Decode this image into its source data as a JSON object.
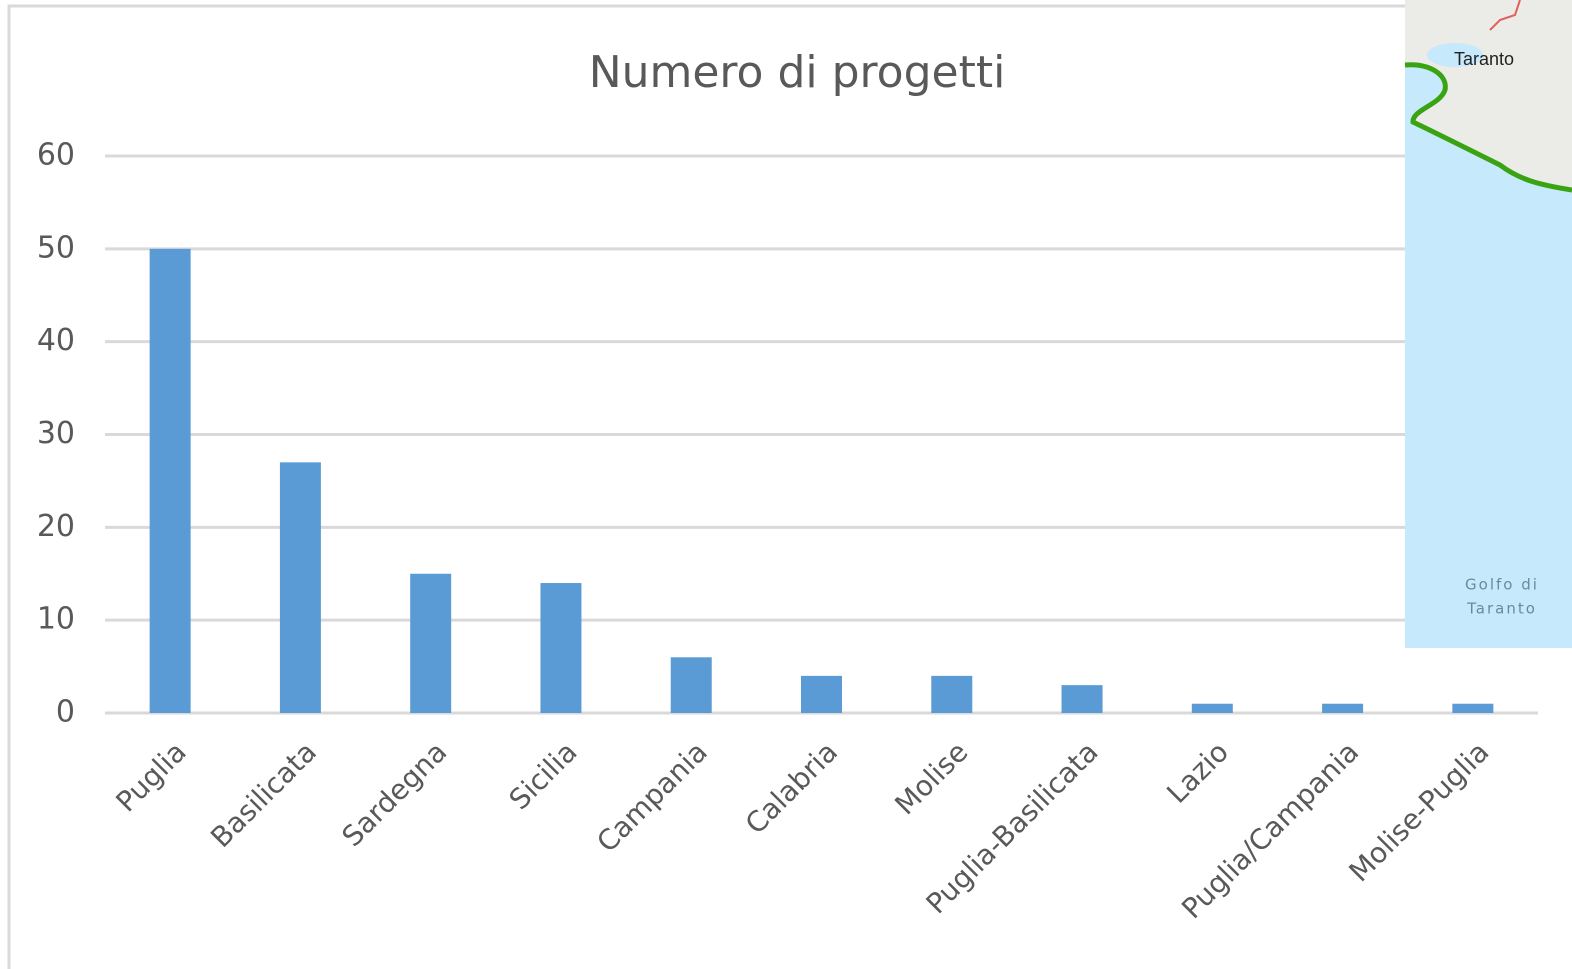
{
  "chart_data": {
    "type": "bar",
    "title": "Numero di progetti",
    "categories": [
      "Puglia",
      "Basilicata",
      "Sardegna",
      "Sicilia",
      "Campania",
      "Calabria",
      "Molise",
      "Puglia-Basilicata",
      "Lazio",
      "Puglia/Campania",
      "Molise-Puglia"
    ],
    "values": [
      50,
      27,
      15,
      14,
      6,
      4,
      4,
      3,
      1,
      1,
      1
    ],
    "color": "#5b9bd5",
    "ylim": [
      0,
      60
    ],
    "yticks": [
      0,
      10,
      20,
      30,
      40,
      50,
      60
    ],
    "grid": true
  },
  "map": {
    "city": "Taranto",
    "gulf": [
      "Golfo di",
      "Taranto"
    ]
  }
}
